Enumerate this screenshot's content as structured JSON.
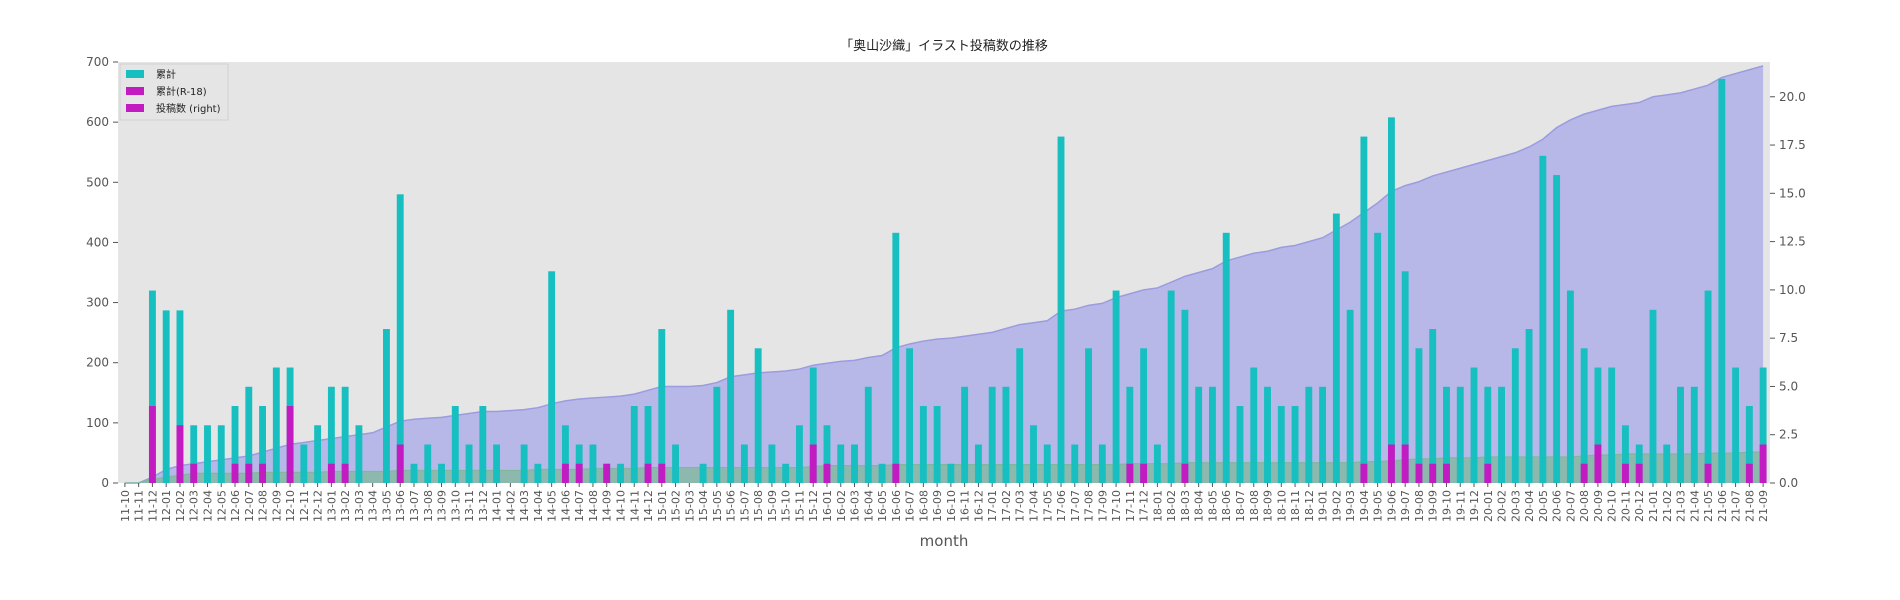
{
  "chart_data": {
    "type": "bar",
    "title": "「奥山沙織」イラスト投稿数の推移",
    "xlabel": "month",
    "ylabel": "",
    "ylim": [
      0,
      700
    ],
    "y2lim": [
      0,
      21.8
    ],
    "yticks": [
      0,
      100,
      200,
      300,
      400,
      500,
      600,
      700
    ],
    "y2ticks": [
      "0.0",
      "2.5",
      "5.0",
      "7.5",
      "10.0",
      "12.5",
      "15.0",
      "17.5",
      "20.0"
    ],
    "grid": false,
    "legend_position": "top-left",
    "legend": [
      "累計",
      "累計(R-18)",
      "投稿数 (right)"
    ],
    "colors": {
      "cumulative": "#17bfc0",
      "cumulative_r18": "#c21bc2",
      "posts_area": "#b3b3e8",
      "posts_line": "#9b9be0",
      "r18_area": "#7fb89a",
      "plot_bg": "#e5e5e5"
    },
    "categories": [
      "11-10",
      "11-11",
      "11-12",
      "12-01",
      "12-02",
      "12-03",
      "12-04",
      "12-05",
      "12-06",
      "12-07",
      "12-08",
      "12-09",
      "12-10",
      "12-11",
      "12-12",
      "13-01",
      "13-02",
      "13-03",
      "13-04",
      "13-05",
      "13-06",
      "13-07",
      "13-08",
      "13-09",
      "13-10",
      "13-11",
      "13-12",
      "14-01",
      "14-02",
      "14-03",
      "14-04",
      "14-05",
      "14-06",
      "14-07",
      "14-08",
      "14-09",
      "14-10",
      "14-11",
      "14-12",
      "15-01",
      "15-02",
      "15-03",
      "15-04",
      "15-05",
      "15-06",
      "15-07",
      "15-08",
      "15-09",
      "15-10",
      "15-11",
      "15-12",
      "16-01",
      "16-02",
      "16-03",
      "16-04",
      "16-05",
      "16-06",
      "16-07",
      "16-08",
      "16-09",
      "16-10",
      "16-11",
      "16-12",
      "17-01",
      "17-02",
      "17-03",
      "17-04",
      "17-05",
      "17-06",
      "17-07",
      "17-08",
      "17-09",
      "17-10",
      "17-11",
      "17-12",
      "18-01",
      "18-02",
      "18-03",
      "18-04",
      "18-05",
      "18-06",
      "18-07",
      "18-08",
      "18-09",
      "18-10",
      "18-11",
      "18-12",
      "19-01",
      "19-02",
      "19-03",
      "19-04",
      "19-05",
      "19-06",
      "19-07",
      "19-08",
      "19-09",
      "19-10",
      "19-11",
      "19-12",
      "20-01",
      "20-02",
      "20-03",
      "20-04",
      "20-05",
      "20-06",
      "20-07",
      "20-08",
      "20-09",
      "20-10",
      "20-11",
      "20-12",
      "21-01",
      "21-02",
      "21-03",
      "21-04",
      "21-05",
      "21-06",
      "21-07",
      "21-08",
      "21-09"
    ],
    "series": [
      {
        "name": "累計",
        "values": [
          0,
          0,
          320,
          287,
          287,
          96,
          96,
          96,
          128,
          160,
          128,
          192,
          192,
          64,
          96,
          160,
          160,
          96,
          0,
          256,
          480,
          32,
          64,
          32,
          128,
          64,
          128,
          64,
          0,
          64,
          32,
          352,
          96,
          64,
          64,
          32,
          32,
          128,
          128,
          256,
          64,
          0,
          32,
          160,
          288,
          64,
          224,
          64,
          32,
          96,
          192,
          96,
          64,
          64,
          160,
          32,
          416,
          224,
          128,
          128,
          32,
          160,
          64,
          160,
          160,
          224,
          96,
          64,
          576,
          64,
          224,
          64,
          320,
          160,
          224,
          64,
          320,
          288,
          160,
          160,
          416,
          128,
          192,
          160,
          128,
          128,
          160,
          160,
          448,
          288,
          576,
          416,
          608,
          352,
          224,
          256,
          160,
          160,
          192,
          160,
          160,
          224,
          256,
          544,
          512,
          320,
          224,
          192,
          192,
          96,
          64,
          288,
          64,
          160,
          160,
          320,
          672,
          192,
          128,
          192
        ]
      },
      {
        "name": "累計(R-18)",
        "values": [
          0,
          0,
          128,
          0,
          96,
          32,
          0,
          0,
          32,
          32,
          32,
          0,
          128,
          0,
          0,
          32,
          32,
          0,
          0,
          0,
          64,
          0,
          0,
          0,
          0,
          0,
          0,
          0,
          0,
          0,
          0,
          0,
          32,
          32,
          0,
          32,
          0,
          0,
          32,
          32,
          0,
          0,
          0,
          0,
          0,
          0,
          0,
          0,
          0,
          0,
          64,
          32,
          0,
          0,
          0,
          0,
          32,
          0,
          0,
          0,
          0,
          0,
          0,
          0,
          0,
          0,
          0,
          0,
          0,
          0,
          0,
          0,
          0,
          32,
          32,
          0,
          0,
          32,
          0,
          0,
          0,
          0,
          0,
          0,
          0,
          0,
          0,
          0,
          0,
          0,
          32,
          0,
          64,
          64,
          32,
          32,
          32,
          0,
          0,
          32,
          0,
          0,
          0,
          0,
          0,
          0,
          32,
          64,
          0,
          32,
          32,
          0,
          0,
          0,
          0,
          32,
          0,
          0,
          32,
          64
        ]
      }
    ],
    "posts_right": [
      0,
      0,
      0.3,
      0.7,
      0.9,
      1.0,
      1.1,
      1.2,
      1.3,
      1.4,
      1.6,
      1.8,
      2.0,
      2.1,
      2.2,
      2.3,
      2.4,
      2.5,
      2.6,
      2.9,
      3.2,
      3.3,
      3.35,
      3.4,
      3.5,
      3.6,
      3.7,
      3.7,
      3.75,
      3.8,
      3.9,
      4.1,
      4.25,
      4.35,
      4.4,
      4.45,
      4.5,
      4.6,
      4.8,
      5.0,
      5.0,
      5.0,
      5.05,
      5.2,
      5.5,
      5.6,
      5.7,
      5.75,
      5.8,
      5.9,
      6.1,
      6.2,
      6.3,
      6.35,
      6.5,
      6.6,
      7.0,
      7.2,
      7.35,
      7.45,
      7.5,
      7.6,
      7.7,
      7.8,
      8.0,
      8.2,
      8.3,
      8.4,
      8.9,
      9.0,
      9.2,
      9.3,
      9.6,
      9.8,
      10.0,
      10.1,
      10.4,
      10.7,
      10.9,
      11.1,
      11.5,
      11.7,
      11.9,
      12.0,
      12.2,
      12.3,
      12.5,
      12.7,
      13.1,
      13.5,
      14.0,
      14.5,
      15.1,
      15.4,
      15.6,
      15.9,
      16.1,
      16.3,
      16.5,
      16.7,
      16.9,
      17.1,
      17.4,
      17.8,
      18.4,
      18.8,
      19.1,
      19.3,
      19.5,
      19.6,
      19.7,
      20.0,
      20.1,
      20.2,
      20.4,
      20.6,
      21.0,
      21.2,
      21.4,
      21.6
    ],
    "r18_right": [
      0,
      0,
      0.2,
      0.3,
      0.4,
      0.5,
      0.5,
      0.5,
      0.5,
      0.5,
      0.55,
      0.55,
      0.55,
      0.55,
      0.55,
      0.6,
      0.6,
      0.6,
      0.6,
      0.6,
      0.65,
      0.65,
      0.65,
      0.65,
      0.65,
      0.65,
      0.65,
      0.65,
      0.65,
      0.65,
      0.7,
      0.7,
      0.7,
      0.7,
      0.75,
      0.75,
      0.75,
      0.75,
      0.8,
      0.8,
      0.8,
      0.8,
      0.8,
      0.8,
      0.8,
      0.8,
      0.8,
      0.8,
      0.8,
      0.8,
      0.85,
      0.9,
      0.9,
      0.9,
      0.9,
      0.9,
      0.95,
      0.95,
      0.95,
      0.95,
      0.95,
      0.95,
      0.95,
      0.95,
      0.95,
      0.95,
      0.95,
      0.95,
      0.95,
      0.95,
      0.95,
      0.95,
      0.95,
      1.0,
      1.0,
      1.0,
      1.0,
      1.05,
      1.05,
      1.05,
      1.05,
      1.05,
      1.05,
      1.05,
      1.05,
      1.05,
      1.05,
      1.05,
      1.05,
      1.05,
      1.1,
      1.1,
      1.15,
      1.2,
      1.25,
      1.25,
      1.3,
      1.3,
      1.3,
      1.35,
      1.35,
      1.35,
      1.35,
      1.35,
      1.35,
      1.35,
      1.4,
      1.45,
      1.45,
      1.5,
      1.5,
      1.5,
      1.5,
      1.5,
      1.5,
      1.55,
      1.55,
      1.55,
      1.6,
      1.6
    ]
  }
}
